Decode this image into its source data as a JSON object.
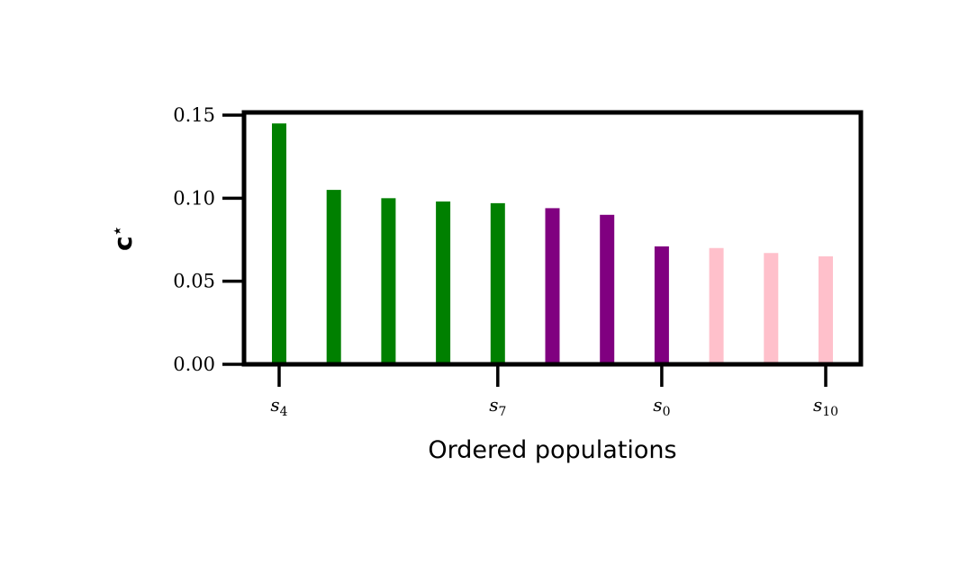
{
  "chart_data": {
    "type": "bar",
    "xlabel": "Ordered populations",
    "ylabel": "c",
    "ylabel_superscript": "⋆",
    "ylim": [
      0,
      0.15
    ],
    "yticks": [
      "0.00",
      "0.05",
      "0.10",
      "0.15"
    ],
    "ytick_values": [
      0,
      0.05,
      0.1,
      0.15
    ],
    "xticks": [
      {
        "index": 0,
        "base": "s",
        "sub": "4"
      },
      {
        "index": 4,
        "base": "s",
        "sub": "7"
      },
      {
        "index": 7,
        "base": "s",
        "sub": "0"
      },
      {
        "index": 10,
        "base": "s",
        "sub": "10"
      }
    ],
    "values": [
      0.145,
      0.105,
      0.1,
      0.098,
      0.097,
      0.094,
      0.09,
      0.071,
      0.07,
      0.067,
      0.065
    ],
    "bar_colors": [
      "#008000",
      "#008000",
      "#008000",
      "#008000",
      "#008000",
      "#800080",
      "#800080",
      "#800080",
      "#ffc0cb",
      "#ffc0cb",
      "#ffc0cb"
    ],
    "grid": false
  }
}
